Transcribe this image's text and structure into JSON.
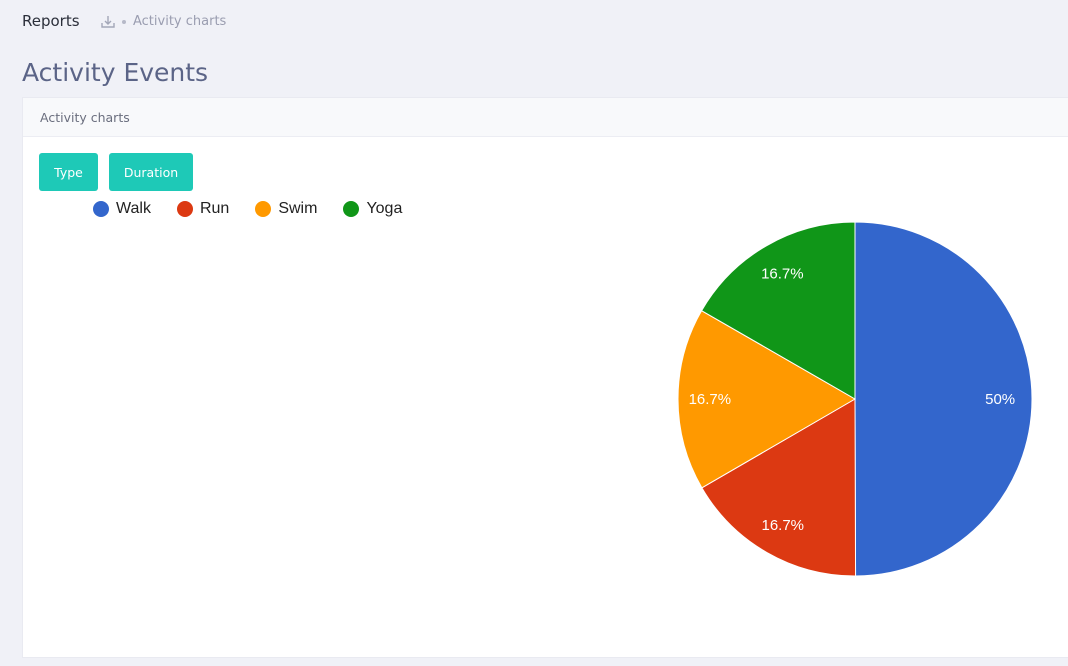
{
  "header": {
    "title": "Reports",
    "breadcrumb": "Activity charts"
  },
  "page": {
    "title": "Activity Events"
  },
  "card": {
    "header_label": "Activity charts",
    "buttons": {
      "type_label": "Type",
      "duration_label": "Duration"
    }
  },
  "colors": {
    "accent": "#1ec9b7",
    "walk": "#3366cc",
    "run": "#dc3912",
    "swim": "#ff9900",
    "yoga": "#109618"
  },
  "chart_data": {
    "type": "pie",
    "title": "",
    "categories": [
      "Walk",
      "Run",
      "Swim",
      "Yoga"
    ],
    "values": [
      50,
      16.7,
      16.7,
      16.7
    ],
    "slice_labels": [
      "50%",
      "16.7%",
      "16.7%",
      "16.7%"
    ],
    "colors": [
      "#3366cc",
      "#dc3912",
      "#ff9900",
      "#109618"
    ],
    "legend": {
      "position": "top-left",
      "items": [
        {
          "label": "Walk",
          "color": "#3366cc"
        },
        {
          "label": "Run",
          "color": "#dc3912"
        },
        {
          "label": "Swim",
          "color": "#ff9900"
        },
        {
          "label": "Yoga",
          "color": "#109618"
        }
      ]
    }
  }
}
